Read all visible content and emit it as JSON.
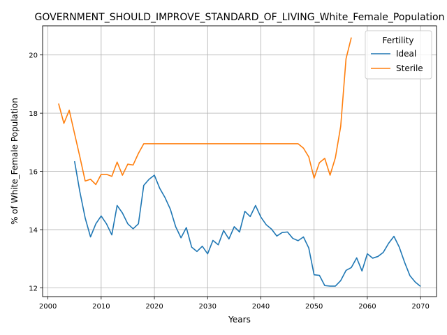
{
  "chart_data": {
    "type": "line",
    "title": "GOVERNMENT_SHOULD_IMPROVE_STANDARD_OF_LIVING_White_Female_Population",
    "xlabel": "Years",
    "ylabel": "% of White_Female Population",
    "xlim": [
      1999,
      2073
    ],
    "ylim": [
      11.7,
      21.0
    ],
    "xticks": [
      2000,
      2010,
      2020,
      2030,
      2040,
      2050,
      2060,
      2070
    ],
    "yticks": [
      12,
      14,
      16,
      18,
      20
    ],
    "grid": true,
    "legend": {
      "title": "Fertility",
      "placement": "upper right"
    },
    "series": [
      {
        "name": "Ideal",
        "color": "#1f77b4",
        "x": [
          2005,
          2006,
          2007,
          2008,
          2009,
          2010,
          2011,
          2012,
          2013,
          2014,
          2015,
          2016,
          2017,
          2018,
          2019,
          2020,
          2021,
          2022,
          2023,
          2024,
          2025,
          2026,
          2027,
          2028,
          2029,
          2030,
          2031,
          2032,
          2033,
          2034,
          2035,
          2036,
          2037,
          2038,
          2039,
          2040,
          2041,
          2042,
          2043,
          2044,
          2045,
          2046,
          2047,
          2048,
          2049,
          2050,
          2051,
          2052,
          2053,
          2054,
          2055,
          2056,
          2057,
          2058,
          2059,
          2060,
          2061,
          2062,
          2063,
          2064,
          2065,
          2066,
          2067,
          2068,
          2069,
          2070
        ],
        "values": [
          16.35,
          15.3,
          14.4,
          13.75,
          14.2,
          14.47,
          14.2,
          13.82,
          14.83,
          14.57,
          14.2,
          14.03,
          14.2,
          15.52,
          15.73,
          15.87,
          15.42,
          15.1,
          14.7,
          14.1,
          13.72,
          14.07,
          13.4,
          13.25,
          13.43,
          13.17,
          13.63,
          13.48,
          13.97,
          13.68,
          14.1,
          13.92,
          14.63,
          14.45,
          14.83,
          14.43,
          14.17,
          14.02,
          13.78,
          13.9,
          13.92,
          13.7,
          13.62,
          13.75,
          13.37,
          12.45,
          12.43,
          12.08,
          12.06,
          12.06,
          12.25,
          12.6,
          12.7,
          13.03,
          12.58,
          13.17,
          13.02,
          13.08,
          13.22,
          13.53,
          13.77,
          13.4,
          12.88,
          12.42,
          12.2,
          12.05
        ]
      },
      {
        "name": "Sterile",
        "color": "#ff7f0e",
        "x": [
          2002,
          2003,
          2004,
          2005,
          2006,
          2007,
          2008,
          2009,
          2010,
          2011,
          2012,
          2013,
          2014,
          2015,
          2016,
          2017,
          2018,
          2019,
          2020,
          2021,
          2022,
          2023,
          2024,
          2025,
          2026,
          2027,
          2028,
          2029,
          2030,
          2031,
          2032,
          2033,
          2034,
          2035,
          2036,
          2037,
          2038,
          2039,
          2040,
          2041,
          2042,
          2043,
          2044,
          2045,
          2046,
          2047,
          2048,
          2049,
          2050,
          2051,
          2052,
          2053,
          2054,
          2055,
          2056,
          2057
        ],
        "values": [
          18.33,
          17.65,
          18.1,
          17.3,
          16.5,
          15.67,
          15.73,
          15.55,
          15.9,
          15.9,
          15.83,
          16.32,
          15.87,
          16.25,
          16.22,
          16.62,
          16.95,
          16.95,
          16.95,
          16.95,
          16.95,
          16.95,
          16.95,
          16.95,
          16.95,
          16.95,
          16.95,
          16.95,
          16.95,
          16.95,
          16.95,
          16.95,
          16.95,
          16.95,
          16.95,
          16.95,
          16.95,
          16.95,
          16.95,
          16.95,
          16.95,
          16.95,
          16.95,
          16.95,
          16.95,
          16.95,
          16.8,
          16.5,
          15.77,
          16.3,
          16.45,
          15.87,
          16.47,
          17.55,
          19.87,
          20.6
        ]
      }
    ]
  }
}
